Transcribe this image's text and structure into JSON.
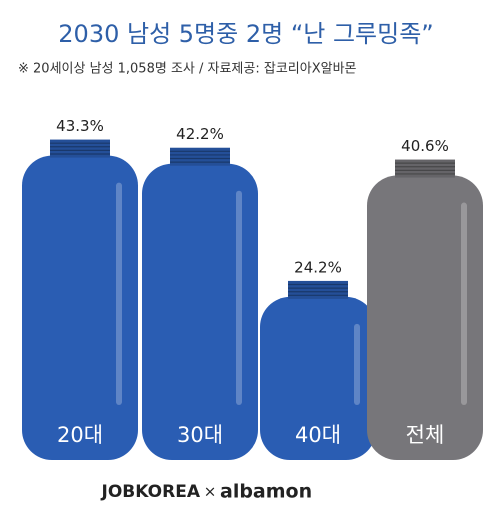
{
  "chart_data": {
    "type": "bottle-bar",
    "title": "2030 남성 5명중 2명 “난 그루밍족”",
    "subtitle": "※ 20세이상 남성 1,058명 조사  / 자료제공: 잡코리아X알바몬",
    "categories": [
      "20대",
      "30대",
      "40대",
      "전체"
    ],
    "values": [
      43.3,
      42.2,
      24.2,
      40.6
    ],
    "value_labels": [
      "43.3%",
      "42.2%",
      "24.2%",
      "40.6%"
    ],
    "colors": [
      "#2a5db3",
      "#2a5db3",
      "#2a5db3",
      "#77767a"
    ]
  },
  "footer": {
    "brand1": "JOBKOREA",
    "separator": "×",
    "brand2": "albamon"
  }
}
